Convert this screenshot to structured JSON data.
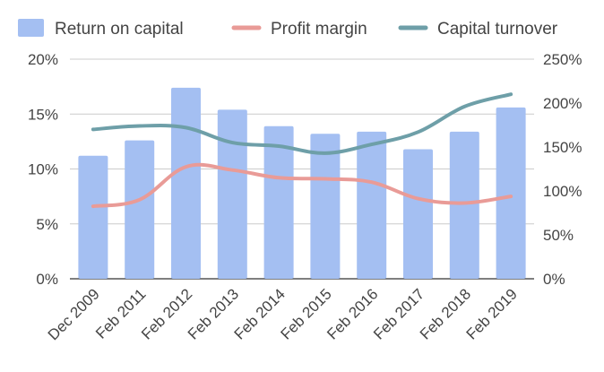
{
  "chart_data": {
    "type": "bar",
    "categories": [
      "Dec 2009",
      "Feb 2011",
      "Feb 2012",
      "Feb 2013",
      "Feb 2014",
      "Feb 2015",
      "Feb 2016",
      "Feb 2017",
      "Feb 2018",
      "Feb 2019"
    ],
    "series": [
      {
        "name": "Return on capital",
        "type": "bar",
        "axis": "left",
        "color": "#a4bff2",
        "values": [
          0.112,
          0.126,
          0.174,
          0.154,
          0.139,
          0.132,
          0.134,
          0.118,
          0.134,
          0.156
        ]
      },
      {
        "name": "Profit margin",
        "type": "line",
        "axis": "left",
        "color": "#e99b97",
        "values": [
          0.066,
          0.072,
          0.102,
          0.099,
          0.092,
          0.091,
          0.088,
          0.073,
          0.069,
          0.075
        ]
      },
      {
        "name": "Capital turnover",
        "type": "line",
        "axis": "right",
        "color": "#6e9fa8",
        "values": [
          1.7,
          1.74,
          1.72,
          1.55,
          1.51,
          1.43,
          1.53,
          1.67,
          1.96,
          2.1
        ]
      }
    ],
    "y_left": {
      "min": 0,
      "max": 0.2,
      "ticks": [
        0,
        0.05,
        0.1,
        0.15,
        0.2
      ],
      "tick_labels": [
        "0%",
        "5%",
        "10%",
        "15%",
        "20%"
      ]
    },
    "y_right": {
      "min": 0,
      "max": 2.5,
      "ticks": [
        0,
        0.5,
        1.0,
        1.5,
        2.0,
        2.5
      ],
      "tick_labels": [
        "0%",
        "50%",
        "100%",
        "150%",
        "200%",
        "250%"
      ]
    },
    "grid": true,
    "legend_position": "top",
    "title": "",
    "xlabel": "",
    "ylabel": ""
  }
}
